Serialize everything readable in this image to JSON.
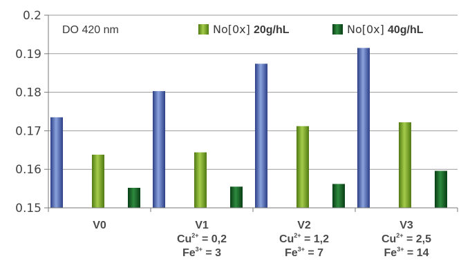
{
  "chart_data": {
    "type": "bar",
    "title": "DO 420 nm",
    "categories": [
      {
        "label": "V0",
        "lines": []
      },
      {
        "label": "V1",
        "lines": [
          {
            "ion": "Cu",
            "charge": "2+",
            "value": "0,2"
          },
          {
            "ion": "Fe",
            "charge": "3+",
            "value": "3"
          }
        ]
      },
      {
        "label": "V2",
        "lines": [
          {
            "ion": "Cu",
            "charge": "2+",
            "value": "1,2"
          },
          {
            "ion": "Fe",
            "charge": "3+",
            "value": "7"
          }
        ]
      },
      {
        "label": "V3",
        "lines": [
          {
            "ion": "Cu",
            "charge": "2+",
            "value": "2,5"
          },
          {
            "ion": "Fe",
            "charge": "3+",
            "value": "14"
          }
        ]
      }
    ],
    "series": [
      {
        "values": [
          0.1735,
          0.1803,
          0.1874,
          0.1915
        ],
        "color": "#3d5aa8",
        "colors": [
          "#2b3f86",
          "#8aa3dd"
        ]
      },
      {
        "name_prefix": "No[0x]",
        "name_suffix": "20g/hL",
        "values": [
          0.1638,
          0.1644,
          0.1712,
          0.1722
        ],
        "color": "#6e9e22",
        "colors": [
          "#4f7a12",
          "#a5cc4a"
        ]
      },
      {
        "name_prefix": "No[0x]",
        "name_suffix": "40g/hL",
        "values": [
          0.1552,
          0.1555,
          0.1562,
          0.1596
        ],
        "color": "#0f5a22",
        "colors": [
          "#083d15",
          "#2e8a3e"
        ]
      }
    ],
    "yticks": [
      "0.15",
      "0.16",
      "0.17",
      "0.18",
      "0.19",
      "0.2"
    ],
    "ylim": [
      0.15,
      0.2
    ],
    "grid": true,
    "legend_position": "top"
  }
}
